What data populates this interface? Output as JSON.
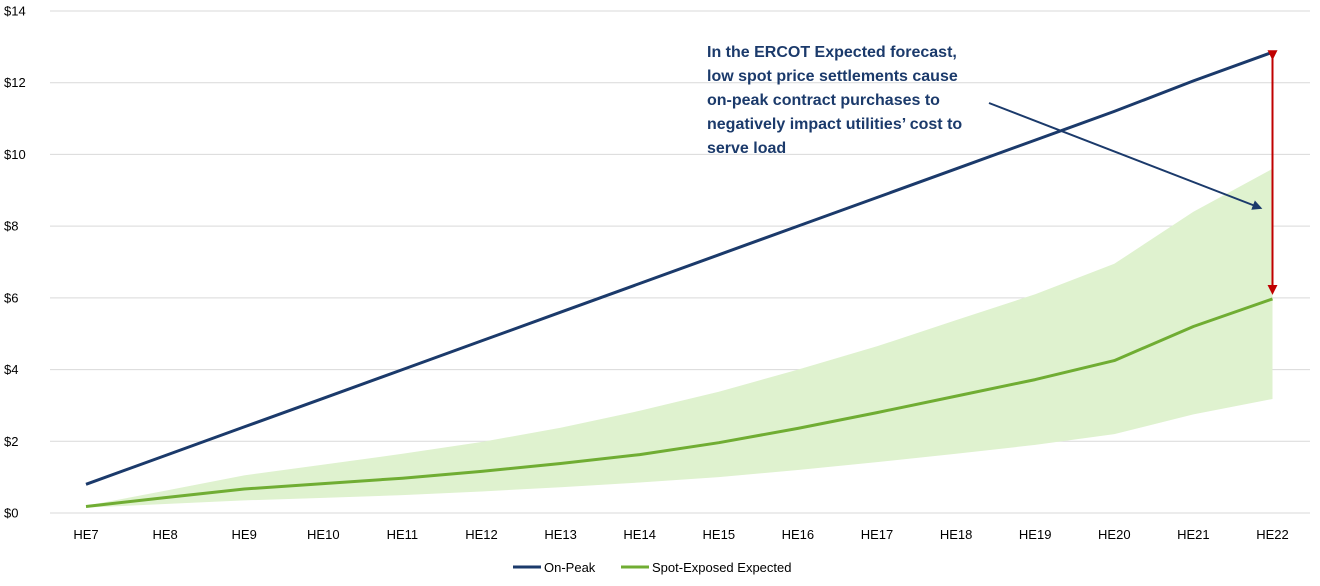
{
  "chart_data": {
    "type": "line",
    "title": "",
    "xlabel": "",
    "ylabel": "",
    "categories": [
      "HE7",
      "HE8",
      "HE9",
      "HE10",
      "HE11",
      "HE12",
      "HE13",
      "HE14",
      "HE15",
      "HE16",
      "HE17",
      "HE18",
      "HE19",
      "HE20",
      "HE21",
      "HE22"
    ],
    "ylim": [
      0,
      14
    ],
    "yticks": [
      0,
      2,
      4,
      6,
      8,
      10,
      12,
      14
    ],
    "ytick_labels": [
      "$0",
      "$2",
      "$4",
      "$6",
      "$8",
      "$10",
      "$12",
      "$14"
    ],
    "grid": true,
    "legend_position": "bottom",
    "series": [
      {
        "name": "On-Peak",
        "color": "#1b3a6b",
        "values": [
          0.8,
          1.6,
          2.4,
          3.2,
          4.0,
          4.8,
          5.6,
          6.4,
          7.2,
          8.0,
          8.8,
          9.6,
          10.4,
          11.2,
          12.05,
          12.85
        ]
      },
      {
        "name": "Spot-Exposed Expected",
        "color": "#70ad33",
        "values": [
          0.18,
          0.43,
          0.67,
          0.82,
          0.97,
          1.16,
          1.38,
          1.63,
          1.96,
          2.36,
          2.8,
          3.26,
          3.72,
          4.25,
          5.2,
          5.97
        ]
      }
    ],
    "band": {
      "name": "Spot-Exposed range",
      "color": "#dff2cf",
      "lower": [
        0.15,
        0.25,
        0.35,
        0.42,
        0.5,
        0.6,
        0.72,
        0.85,
        1.0,
        1.2,
        1.42,
        1.65,
        1.9,
        2.2,
        2.75,
        3.18
      ],
      "upper": [
        0.2,
        0.62,
        1.05,
        1.35,
        1.65,
        1.98,
        2.38,
        2.85,
        3.38,
        4.0,
        4.65,
        5.38,
        6.1,
        6.95,
        8.4,
        9.6
      ]
    },
    "annotation": {
      "lines": [
        "In the ERCOT Expected forecast,",
        "low spot price settlements cause",
        "on-peak contract purchases to",
        "negatively impact utilities’ cost to",
        "serve load"
      ],
      "color": "#1b3a6b"
    },
    "gap_arrow": {
      "category": "HE22",
      "from": 12.85,
      "to": 5.97,
      "color": "#c00000"
    }
  }
}
